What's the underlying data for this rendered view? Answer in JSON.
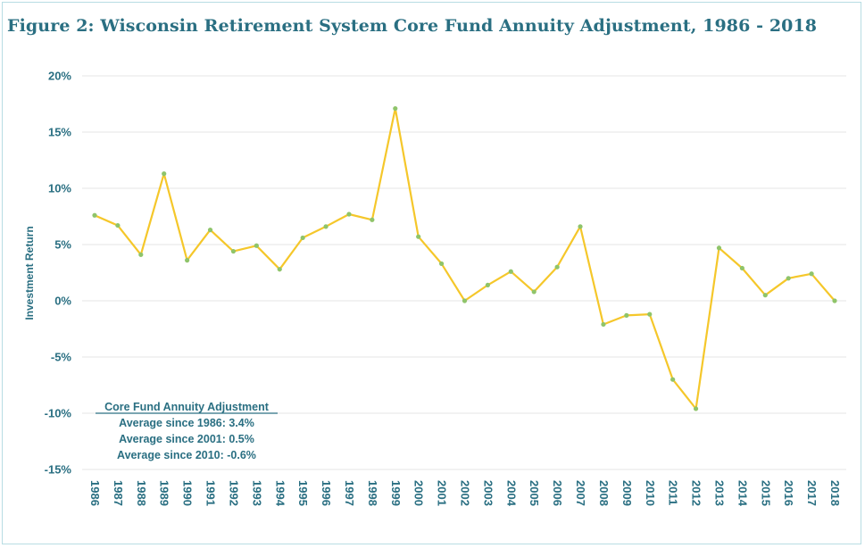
{
  "figure": {
    "title": "Figure 2:  Wisconsin Retirement System Core Fund Annuity Adjustment, 1986 - 2018"
  },
  "colors": {
    "line": "#f5c72a",
    "marker": "#8fc46a",
    "text": "#2a6f82",
    "grid": "#e4e4e4",
    "border": "#b8dde3"
  },
  "legend": {
    "heading": "Core Fund Annuity Adjustment",
    "lines": [
      "Average since 1986: 3.4%",
      "Average since 2001: 0.5%",
      "Average since 2010: -0.6%"
    ]
  },
  "chart_data": {
    "type": "line",
    "title": "",
    "xlabel": "",
    "ylabel": "Investment Return",
    "ylim": [
      -15,
      20
    ],
    "yticks": [
      20,
      15,
      10,
      5,
      0,
      -5,
      -10,
      -15
    ],
    "ytick_labels": [
      "20%",
      "15%",
      "10%",
      "5%",
      "0%",
      "-5%",
      "-10%",
      "-15%"
    ],
    "grid": true,
    "categories": [
      "1986",
      "1987",
      "1988",
      "1989",
      "1990",
      "1991",
      "1992",
      "1993",
      "1994",
      "1995",
      "1996",
      "1997",
      "1998",
      "1999",
      "2000",
      "2001",
      "2002",
      "2003",
      "2004",
      "2005",
      "2006",
      "2007",
      "2008",
      "2009",
      "2010",
      "2011",
      "2012",
      "2013",
      "2014",
      "2015",
      "2016",
      "2017",
      "2018"
    ],
    "series": [
      {
        "name": "",
        "values": [
          7.6,
          6.7,
          4.1,
          11.3,
          3.6,
          6.3,
          4.4,
          4.9,
          2.8,
          5.6,
          6.6,
          7.7,
          7.2,
          17.1,
          5.7,
          3.3,
          0.0,
          1.4,
          2.6,
          0.8,
          3.0,
          6.6,
          -2.1,
          -1.3,
          -1.2,
          -7.0,
          -9.6,
          4.7,
          2.9,
          0.5,
          2.0,
          2.4,
          0.0
        ]
      }
    ]
  }
}
